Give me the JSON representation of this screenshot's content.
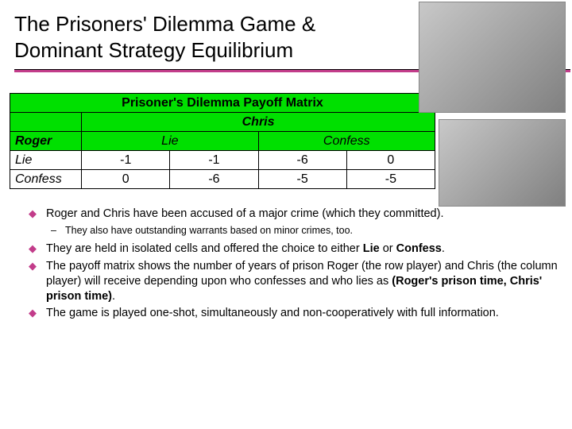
{
  "title": {
    "line1": "The Prisoners' Dilemma Game &",
    "line2": "Dominant Strategy Equilibrium"
  },
  "accent_color": "#c23c8a",
  "matrix": {
    "title": "Prisoner's Dilemma Payoff Matrix",
    "col_player": "Chris",
    "row_player": "Roger",
    "col_headers": [
      "Lie",
      "Confess"
    ],
    "row_headers": [
      "Lie",
      "Confess"
    ],
    "cells": [
      [
        [
          "-1",
          "-1"
        ],
        [
          "-6",
          "0"
        ]
      ],
      [
        [
          "0",
          "-6"
        ],
        [
          "-5",
          "-5"
        ]
      ]
    ],
    "header_bg": "#00e000",
    "body_bg": "#ffffff"
  },
  "bullets": [
    {
      "html": "Roger and Chris have been accused of a major crime (which they committed).",
      "sub": "They also have outstanding warrants based on minor crimes, too."
    },
    {
      "html": "They are held in isolated cells and offered the choice to either <b>Lie</b> or <b>Confess</b>."
    },
    {
      "html": "The payoff matrix shows the number of years of prison Roger (the row player) and Chris (the column player) will receive depending upon who confesses and who lies as <b>(Roger's prison time, Chris' prison time)</b>."
    },
    {
      "html": "The game is played one-shot, simultaneously and non-cooperatively with full information."
    }
  ]
}
